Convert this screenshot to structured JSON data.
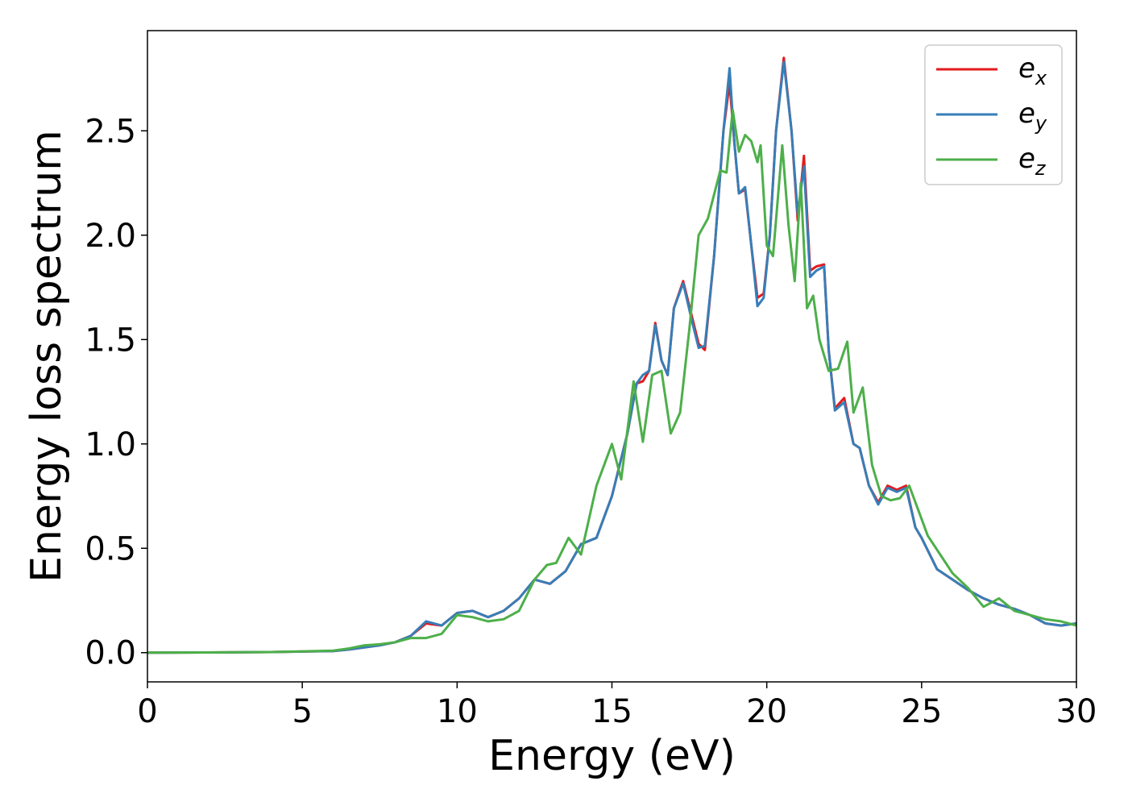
{
  "chart_data": {
    "type": "line",
    "title": "",
    "xlabel": "Energy (eV)",
    "ylabel": "Energy loss spectrum",
    "xlim": [
      0,
      30
    ],
    "ylim": [
      -0.14,
      2.98
    ],
    "xticks": [
      0,
      5,
      10,
      15,
      20,
      25,
      30
    ],
    "xtick_labels": [
      "0",
      "5",
      "10",
      "15",
      "20",
      "25",
      "30"
    ],
    "yticks": [
      0.0,
      0.5,
      1.0,
      1.5,
      2.0,
      2.5
    ],
    "ytick_labels": [
      "0.0",
      "0.5",
      "1.0",
      "1.5",
      "2.0",
      "2.5"
    ],
    "grid": false,
    "legend_position": "top-right",
    "series": [
      {
        "name": "e_x",
        "label_main": "e",
        "label_sub": "x",
        "color": "#e41a1c",
        "x": [
          0,
          2,
          4,
          6,
          6.5,
          7,
          7.5,
          8,
          8.5,
          9,
          9.5,
          10,
          10.5,
          11,
          11.5,
          12,
          12.5,
          13,
          13.5,
          14,
          14.5,
          15,
          15.5,
          15.8,
          16,
          16.2,
          16.4,
          16.6,
          16.8,
          17,
          17.3,
          17.6,
          17.8,
          18,
          18.3,
          18.6,
          18.8,
          18.95,
          19.1,
          19.3,
          19.5,
          19.7,
          19.9,
          20.1,
          20.3,
          20.55,
          20.8,
          21,
          21.2,
          21.4,
          21.6,
          21.85,
          22,
          22.2,
          22.5,
          22.8,
          23,
          23.3,
          23.6,
          23.9,
          24.2,
          24.5,
          24.8,
          25,
          25.5,
          26,
          26.5,
          27,
          27.5,
          28,
          28.5,
          29,
          29.5,
          30
        ],
        "y": [
          0,
          0.001,
          0.003,
          0.008,
          0.015,
          0.025,
          0.035,
          0.05,
          0.08,
          0.14,
          0.13,
          0.19,
          0.2,
          0.17,
          0.2,
          0.26,
          0.35,
          0.33,
          0.39,
          0.52,
          0.55,
          0.75,
          1.05,
          1.29,
          1.3,
          1.35,
          1.58,
          1.4,
          1.33,
          1.65,
          1.78,
          1.6,
          1.48,
          1.45,
          1.9,
          2.5,
          2.73,
          2.45,
          2.2,
          2.22,
          1.95,
          1.7,
          1.72,
          2.0,
          2.5,
          2.85,
          2.5,
          2.07,
          2.38,
          1.83,
          1.85,
          1.86,
          1.45,
          1.17,
          1.22,
          1.0,
          0.98,
          0.8,
          0.72,
          0.8,
          0.78,
          0.8,
          0.6,
          0.55,
          0.4,
          0.35,
          0.3,
          0.26,
          0.23,
          0.21,
          0.18,
          0.14,
          0.13,
          0.14
        ]
      },
      {
        "name": "e_y",
        "label_main": "e",
        "label_sub": "y",
        "color": "#377eb8",
        "x": [
          0,
          2,
          4,
          6,
          6.5,
          7,
          7.5,
          8,
          8.5,
          9,
          9.5,
          10,
          10.5,
          11,
          11.5,
          12,
          12.5,
          13,
          13.5,
          14,
          14.5,
          15,
          15.5,
          15.8,
          16,
          16.2,
          16.4,
          16.6,
          16.8,
          17,
          17.3,
          17.6,
          17.8,
          18,
          18.3,
          18.6,
          18.8,
          18.95,
          19.1,
          19.3,
          19.5,
          19.7,
          19.9,
          20.1,
          20.3,
          20.55,
          20.8,
          21,
          21.2,
          21.4,
          21.6,
          21.85,
          22,
          22.2,
          22.5,
          22.8,
          23,
          23.3,
          23.6,
          23.9,
          24.2,
          24.5,
          24.8,
          25,
          25.5,
          26,
          26.5,
          27,
          27.5,
          28,
          28.5,
          29,
          29.5,
          30
        ],
        "y": [
          0,
          0.001,
          0.003,
          0.008,
          0.015,
          0.025,
          0.035,
          0.05,
          0.08,
          0.15,
          0.13,
          0.19,
          0.2,
          0.17,
          0.2,
          0.26,
          0.35,
          0.33,
          0.39,
          0.52,
          0.55,
          0.75,
          1.05,
          1.29,
          1.33,
          1.35,
          1.57,
          1.4,
          1.33,
          1.65,
          1.77,
          1.58,
          1.46,
          1.47,
          1.9,
          2.5,
          2.8,
          2.45,
          2.2,
          2.23,
          1.95,
          1.66,
          1.7,
          2.0,
          2.5,
          2.83,
          2.5,
          2.1,
          2.33,
          1.8,
          1.83,
          1.85,
          1.45,
          1.16,
          1.2,
          1.0,
          0.98,
          0.8,
          0.71,
          0.79,
          0.77,
          0.79,
          0.6,
          0.55,
          0.4,
          0.35,
          0.3,
          0.26,
          0.23,
          0.21,
          0.18,
          0.14,
          0.13,
          0.14
        ]
      },
      {
        "name": "e_z",
        "label_main": "e",
        "label_sub": "z",
        "color": "#4daf4a",
        "x": [
          0,
          2,
          4,
          6,
          6.5,
          7,
          7.5,
          8,
          8.5,
          9,
          9.5,
          10,
          10.5,
          11,
          11.5,
          12,
          12.5,
          12.9,
          13.2,
          13.6,
          14,
          14.5,
          15,
          15.3,
          15.7,
          16,
          16.3,
          16.6,
          16.9,
          17.2,
          17.5,
          17.8,
          18.1,
          18.5,
          18.7,
          18.9,
          19.1,
          19.3,
          19.5,
          19.7,
          19.8,
          20,
          20.2,
          20.5,
          20.7,
          20.9,
          21.1,
          21.3,
          21.5,
          21.7,
          22,
          22.3,
          22.6,
          22.8,
          23.1,
          23.4,
          23.7,
          24,
          24.3,
          24.6,
          24.9,
          25.2,
          25.6,
          26,
          26.5,
          27,
          27.5,
          28,
          28.5,
          29,
          29.5,
          30
        ],
        "y": [
          0,
          0.001,
          0.003,
          0.01,
          0.02,
          0.035,
          0.04,
          0.05,
          0.07,
          0.07,
          0.09,
          0.18,
          0.17,
          0.15,
          0.16,
          0.2,
          0.35,
          0.42,
          0.43,
          0.55,
          0.47,
          0.8,
          1.0,
          0.83,
          1.3,
          1.01,
          1.33,
          1.35,
          1.05,
          1.15,
          1.55,
          2.0,
          2.08,
          2.31,
          2.3,
          2.6,
          2.4,
          2.48,
          2.45,
          2.35,
          2.43,
          1.95,
          1.9,
          2.43,
          2.05,
          1.78,
          2.25,
          1.65,
          1.71,
          1.5,
          1.35,
          1.36,
          1.49,
          1.15,
          1.27,
          0.9,
          0.75,
          0.73,
          0.74,
          0.8,
          0.68,
          0.56,
          0.47,
          0.38,
          0.31,
          0.22,
          0.26,
          0.2,
          0.18,
          0.16,
          0.15,
          0.13
        ]
      }
    ]
  }
}
